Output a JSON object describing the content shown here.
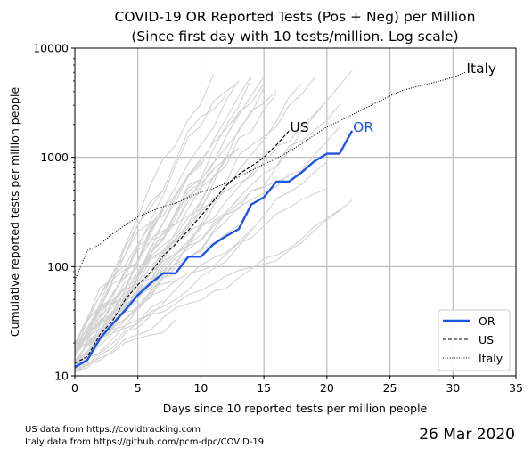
{
  "chart_data": {
    "type": "line",
    "title": "COVID-19 OR Reported Tests (Pos + Neg) per Million",
    "subtitle": "(Since first day with 10 tests/million. Log scale)",
    "xlabel": "Days since 10 reported tests per million people",
    "ylabel": "Cumulative reported tests per million people",
    "xlim": [
      0,
      35
    ],
    "ylim": [
      10,
      10000
    ],
    "yscale": "log",
    "grid": true,
    "legend_position": "lower-right",
    "x_ticks": [
      0,
      5,
      10,
      15,
      20,
      25,
      30,
      35
    ],
    "y_ticks": [
      10,
      100,
      1000,
      10000
    ],
    "y_tick_labels": [
      "10",
      "100",
      "1000",
      "10000"
    ],
    "series": [
      {
        "name": "OR",
        "color": "#1f55e6",
        "style": "solid",
        "x": [
          0,
          1,
          2,
          3,
          4,
          5,
          6,
          7,
          8,
          9,
          10,
          11,
          12,
          13,
          14,
          15,
          16,
          17,
          18,
          19,
          20,
          21,
          22
        ],
        "values": [
          12,
          14,
          22,
          30,
          40,
          55,
          70,
          87,
          87,
          123,
          123,
          160,
          190,
          220,
          370,
          430,
          600,
          600,
          730,
          920,
          1080,
          1080,
          1750
        ]
      },
      {
        "name": "US",
        "color": "#000000",
        "style": "dashed",
        "x": [
          0,
          1,
          2,
          3,
          4,
          5,
          6,
          7,
          8,
          9,
          10,
          11,
          12,
          13,
          14,
          15,
          16,
          17
        ],
        "values": [
          13,
          15,
          24,
          32,
          50,
          68,
          88,
          125,
          160,
          215,
          290,
          400,
          550,
          700,
          830,
          1000,
          1300,
          1750
        ]
      },
      {
        "name": "Italy",
        "color": "#000000",
        "style": "dotted",
        "x": [
          0,
          1,
          2,
          3,
          4,
          5,
          6,
          7,
          8,
          9,
          10,
          11,
          12,
          13,
          14,
          15,
          16,
          17,
          18,
          19,
          20,
          21,
          22,
          23,
          24,
          25,
          26,
          27,
          28,
          29,
          30,
          31
        ],
        "values": [
          75,
          140,
          160,
          200,
          240,
          285,
          320,
          355,
          380,
          430,
          480,
          520,
          580,
          660,
          760,
          860,
          980,
          1130,
          1330,
          1600,
          1900,
          2150,
          2450,
          2800,
          3200,
          3650,
          4100,
          4400,
          4700,
          5000,
          5400,
          6000
        ]
      }
    ],
    "background_series_color": "#d3d3d3",
    "annotations": [
      {
        "text": "Italy",
        "x": 31,
        "y": 6000,
        "color": "#000000"
      },
      {
        "text": "US",
        "x": 17,
        "y": 1750,
        "color": "#000000"
      },
      {
        "text": "OR",
        "x": 22,
        "y": 1750,
        "color": "#1f55e6"
      }
    ]
  },
  "footer": {
    "source_line_1": "US data from https://covidtracking.com",
    "source_line_2": "Italy data from https://github.com/pcm-dpc/COVID-19",
    "date": "26 Mar 2020"
  }
}
